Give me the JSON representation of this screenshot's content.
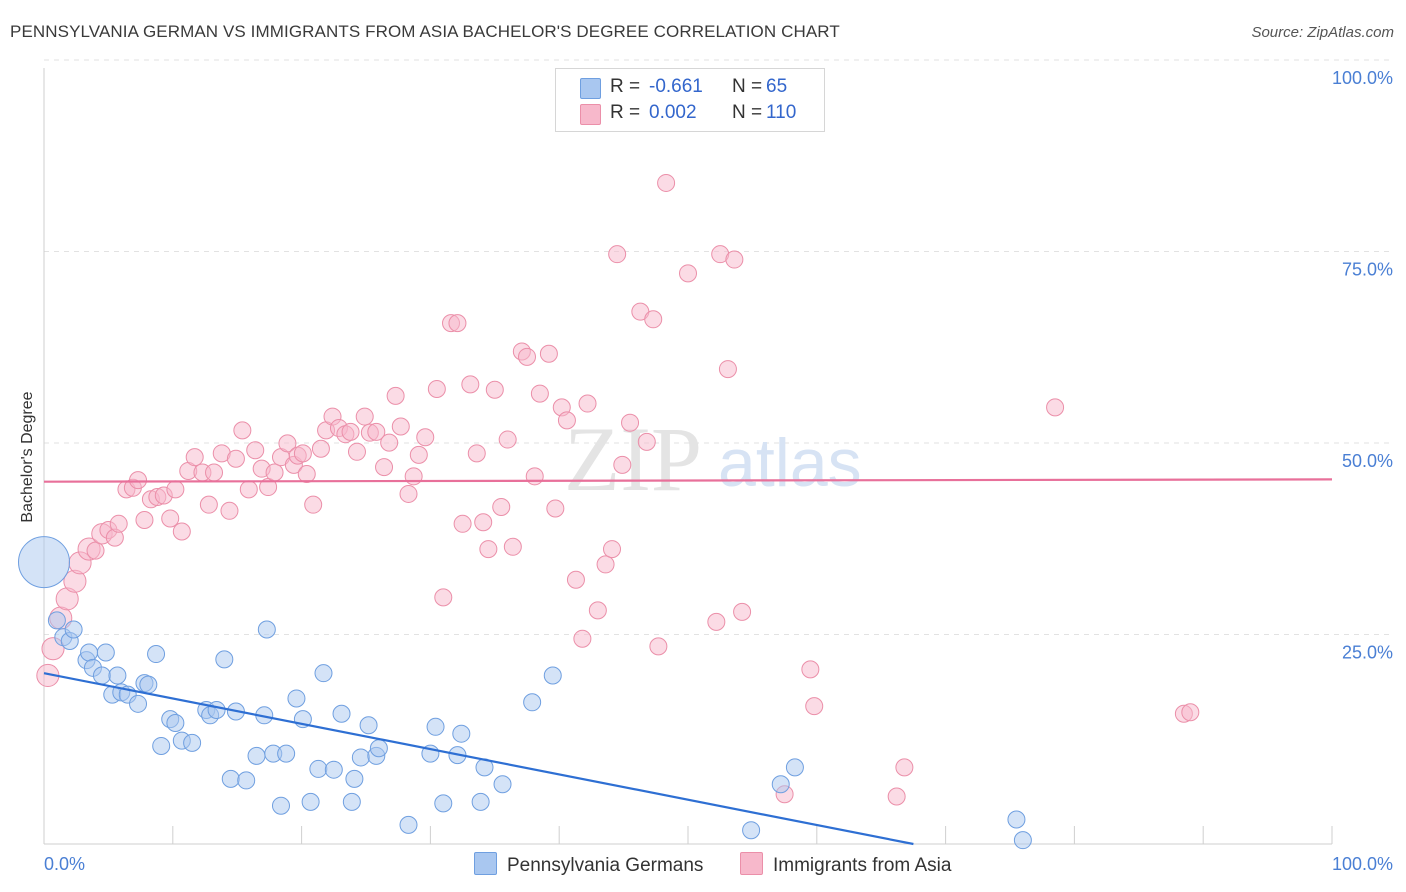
{
  "title": "PENNSYLVANIA GERMAN VS IMMIGRANTS FROM ASIA BACHELOR'S DEGREE CORRELATION CHART",
  "source": "Source: ZipAtlas.com",
  "watermark": {
    "zip": "ZIP",
    "atlas": "atlas"
  },
  "stats": [
    {
      "r_label": "R =",
      "r_value": "-0.661",
      "n_label": "N =",
      "n_value": "65",
      "color": "#a9c7f0"
    },
    {
      "r_label": "R =",
      "r_value": "0.002",
      "n_label": "N =",
      "n_value": "110",
      "color": "#f7b8cb"
    }
  ],
  "legend": [
    {
      "label": "Pennsylvania Germans",
      "color": "#a9c7f0"
    },
    {
      "label": "Immigrants from Asia",
      "color": "#f7b8cb"
    }
  ],
  "chart_data": {
    "type": "scatter",
    "title": "PENNSYLVANIA GERMAN VS IMMIGRANTS FROM ASIA BACHELOR'S DEGREE CORRELATION CHART",
    "xlabel": "",
    "ylabel": "Bachelor's Degree",
    "xlim": [
      0,
      100
    ],
    "ylim": [
      0,
      100
    ],
    "x_tick_labels": [
      "0.0%",
      "100.0%"
    ],
    "y_tick_labels": [
      "25.0%",
      "50.0%",
      "75.0%",
      "100.0%"
    ],
    "y_ticks": [
      25,
      50,
      75,
      100
    ],
    "grid": true,
    "series": [
      {
        "name": "Pennsylvania Germans",
        "color": "#a9c7f0",
        "stroke": "#6f9fe0",
        "trend_color": "#2e6fd3",
        "trend": {
          "x0": 0,
          "y0": 22.3,
          "x1": 67.5,
          "y1": 0
        },
        "points": [
          [
            0,
            36.8,
            3
          ],
          [
            1,
            29.2,
            1
          ],
          [
            1.5,
            27,
            1
          ],
          [
            2,
            26.5,
            1
          ],
          [
            2.3,
            28,
            1
          ],
          [
            3.3,
            24,
            1
          ],
          [
            3.5,
            25,
            1
          ],
          [
            3.8,
            23,
            1
          ],
          [
            4.5,
            22,
            1
          ],
          [
            4.8,
            25,
            1
          ],
          [
            5.3,
            19.5,
            1
          ],
          [
            5.7,
            22,
            1
          ],
          [
            6,
            19.8,
            1
          ],
          [
            6.5,
            19.5,
            1
          ],
          [
            7.3,
            18.3,
            1
          ],
          [
            7.8,
            21,
            1
          ],
          [
            8.1,
            20.8,
            1
          ],
          [
            8.7,
            24.8,
            1
          ],
          [
            9.1,
            12.8,
            1
          ],
          [
            9.8,
            16.3,
            1
          ],
          [
            10.2,
            15.8,
            1
          ],
          [
            10.7,
            13.5,
            1
          ],
          [
            11.5,
            13.2,
            1
          ],
          [
            12.6,
            17.5,
            1
          ],
          [
            12.9,
            16.8,
            1
          ],
          [
            13.4,
            17.5,
            1
          ],
          [
            14,
            24.1,
            1
          ],
          [
            14.5,
            8.5,
            1
          ],
          [
            14.9,
            17.3,
            1
          ],
          [
            15.7,
            8.3,
            1
          ],
          [
            16.5,
            11.5,
            1
          ],
          [
            17.1,
            16.8,
            1
          ],
          [
            17.3,
            28,
            1
          ],
          [
            17.8,
            11.8,
            1
          ],
          [
            18.4,
            5,
            1
          ],
          [
            18.8,
            11.8,
            1
          ],
          [
            19.6,
            19,
            1
          ],
          [
            20.1,
            16.3,
            1
          ],
          [
            20.7,
            5.5,
            1
          ],
          [
            21.3,
            9.8,
            1
          ],
          [
            21.7,
            22.3,
            1
          ],
          [
            22.5,
            9.7,
            1
          ],
          [
            23.1,
            17,
            1
          ],
          [
            23.9,
            5.5,
            1
          ],
          [
            24.1,
            8.5,
            1
          ],
          [
            24.6,
            11.3,
            1
          ],
          [
            25.2,
            15.5,
            1
          ],
          [
            25.8,
            11.5,
            1
          ],
          [
            26,
            12.5,
            1
          ],
          [
            28.3,
            2.5,
            1
          ],
          [
            30,
            11.8,
            1
          ],
          [
            30.4,
            15.3,
            1
          ],
          [
            31,
            5.3,
            1
          ],
          [
            32.1,
            11.6,
            1
          ],
          [
            32.4,
            14.4,
            1
          ],
          [
            33.9,
            5.5,
            1
          ],
          [
            34.2,
            10,
            1
          ],
          [
            35.6,
            7.8,
            1
          ],
          [
            37.9,
            18.5,
            1
          ],
          [
            39.5,
            22,
            1
          ],
          [
            54.9,
            1.8,
            1
          ],
          [
            57.2,
            7.8,
            1
          ],
          [
            58.3,
            10,
            1
          ],
          [
            75.5,
            3.2,
            1
          ],
          [
            76,
            0.5,
            1
          ]
        ]
      },
      {
        "name": "Immigrants from Asia",
        "color": "#f7b8cb",
        "stroke": "#eb8fa9",
        "trend_color": "#e8709a",
        "trend": {
          "x0": 0,
          "y0": 47.3,
          "x1": 100,
          "y1": 47.6
        },
        "points": [
          [
            0.3,
            22,
            1.3
          ],
          [
            0.7,
            25.5,
            1.3
          ],
          [
            1.3,
            29.5,
            1.3
          ],
          [
            1.8,
            32,
            1.3
          ],
          [
            2.4,
            34.3,
            1.3
          ],
          [
            2.8,
            36.7,
            1.3
          ],
          [
            3.5,
            38.5,
            1.3
          ],
          [
            4,
            38.3,
            1
          ],
          [
            4.5,
            40.5,
            1.2
          ],
          [
            5,
            41,
            1
          ],
          [
            5.5,
            40,
            1
          ],
          [
            5.8,
            41.8,
            1
          ],
          [
            6.4,
            46.3,
            1
          ],
          [
            6.9,
            46.5,
            1
          ],
          [
            7.3,
            47.5,
            1
          ],
          [
            7.8,
            42.3,
            1
          ],
          [
            8.3,
            45,
            1
          ],
          [
            8.8,
            45.3,
            1
          ],
          [
            9.3,
            45.5,
            1
          ],
          [
            9.8,
            42.5,
            1
          ],
          [
            10.2,
            46.3,
            1
          ],
          [
            10.7,
            40.8,
            1
          ],
          [
            11.2,
            48.7,
            1
          ],
          [
            11.7,
            50.5,
            1
          ],
          [
            12.3,
            48.5,
            1
          ],
          [
            12.8,
            44.3,
            1
          ],
          [
            13.2,
            48.5,
            1
          ],
          [
            13.8,
            51,
            1
          ],
          [
            14.4,
            43.5,
            1
          ],
          [
            14.9,
            50.3,
            1
          ],
          [
            15.4,
            54,
            1
          ],
          [
            15.9,
            46.3,
            1
          ],
          [
            16.4,
            51.4,
            1
          ],
          [
            16.9,
            49,
            1
          ],
          [
            17.4,
            46.6,
            1
          ],
          [
            17.9,
            48.5,
            1
          ],
          [
            18.4,
            50.5,
            1
          ],
          [
            18.9,
            52.3,
            1
          ],
          [
            19.4,
            49.5,
            1
          ],
          [
            19.7,
            50.7,
            1
          ],
          [
            20.1,
            51,
            1
          ],
          [
            20.4,
            48.3,
            1
          ],
          [
            20.9,
            44.3,
            1
          ],
          [
            21.5,
            51.6,
            1
          ],
          [
            21.9,
            54,
            1
          ],
          [
            22.4,
            55.8,
            1
          ],
          [
            22.9,
            54.3,
            1
          ],
          [
            23.4,
            53.5,
            1
          ],
          [
            23.8,
            53.8,
            1
          ],
          [
            24.3,
            51.2,
            1
          ],
          [
            24.9,
            55.8,
            1
          ],
          [
            25.3,
            53.7,
            1
          ],
          [
            25.8,
            53.8,
            1
          ],
          [
            26.4,
            49.2,
            1
          ],
          [
            26.8,
            52.4,
            1
          ],
          [
            27.3,
            58.5,
            1
          ],
          [
            27.7,
            54.5,
            1
          ],
          [
            28.3,
            45.7,
            1
          ],
          [
            28.7,
            48,
            1
          ],
          [
            29.1,
            50.8,
            1
          ],
          [
            29.6,
            53.1,
            1
          ],
          [
            30.5,
            59.4,
            1
          ],
          [
            31,
            32.2,
            1
          ],
          [
            31.6,
            68,
            1
          ],
          [
            32.1,
            68,
            1
          ],
          [
            32.5,
            41.8,
            1
          ],
          [
            33.1,
            60,
            1
          ],
          [
            33.6,
            51,
            1
          ],
          [
            34.1,
            42,
            1
          ],
          [
            34.5,
            38.5,
            1
          ],
          [
            35,
            59.3,
            1
          ],
          [
            35.5,
            44,
            1
          ],
          [
            36,
            52.8,
            1
          ],
          [
            36.4,
            38.8,
            1
          ],
          [
            37.1,
            64.3,
            1
          ],
          [
            37.5,
            63.6,
            1
          ],
          [
            38.1,
            48,
            1
          ],
          [
            38.5,
            58.8,
            1
          ],
          [
            39.2,
            64,
            1
          ],
          [
            39.7,
            43.8,
            1
          ],
          [
            40.2,
            57,
            1
          ],
          [
            40.6,
            55.3,
            1
          ],
          [
            41.3,
            34.5,
            1
          ],
          [
            41.8,
            26.8,
            1
          ],
          [
            42.2,
            57.5,
            1
          ],
          [
            43,
            30.5,
            1
          ],
          [
            43.6,
            36.5,
            1
          ],
          [
            44.1,
            38.5,
            1
          ],
          [
            44.5,
            77,
            1
          ],
          [
            44.9,
            49.5,
            1
          ],
          [
            45.5,
            55,
            1
          ],
          [
            46.3,
            69.5,
            1
          ],
          [
            46.8,
            52.5,
            1
          ],
          [
            47.3,
            68.5,
            1
          ],
          [
            47.7,
            25.8,
            1
          ],
          [
            48.3,
            86.3,
            1
          ],
          [
            50,
            74.5,
            1
          ],
          [
            52.2,
            29,
            1
          ],
          [
            52.5,
            77,
            1
          ],
          [
            53.1,
            62,
            1
          ],
          [
            53.6,
            76.3,
            1
          ],
          [
            54.2,
            30.3,
            1
          ],
          [
            57.5,
            6.5,
            1
          ],
          [
            59.5,
            22.8,
            1
          ],
          [
            59.8,
            18,
            1
          ],
          [
            66.2,
            6.2,
            1
          ],
          [
            66.8,
            10,
            1
          ],
          [
            78.5,
            57,
            1
          ],
          [
            88.5,
            17,
            1
          ],
          [
            89,
            17.2,
            1
          ]
        ]
      }
    ]
  }
}
